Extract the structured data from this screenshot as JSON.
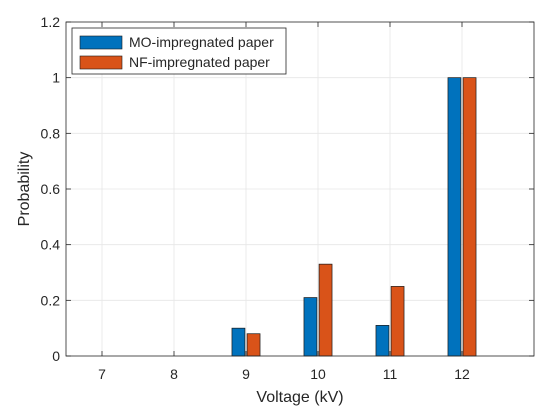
{
  "chart_data": {
    "type": "bar",
    "categories": [
      "7",
      "8",
      "9",
      "10",
      "11",
      "12"
    ],
    "series": [
      {
        "name": "MO-impregnated paper",
        "values": [
          0,
          0,
          0.1,
          0.21,
          0.11,
          1.0
        ],
        "color": "#0072BD"
      },
      {
        "name": "NF-impregnated paper",
        "values": [
          0,
          0,
          0.08,
          0.33,
          0.25,
          1.0
        ],
        "color": "#D95319"
      }
    ],
    "title": "",
    "xlabel": "Voltage (kV)",
    "ylabel": "Probability",
    "xlim": [
      6.5,
      13.0
    ],
    "ylim": [
      0,
      1.2
    ],
    "yticks": [
      "0",
      "0.2",
      "0.4",
      "0.6",
      "0.8",
      "1",
      "1.2"
    ],
    "grid": true,
    "legend_position": "top-left"
  }
}
